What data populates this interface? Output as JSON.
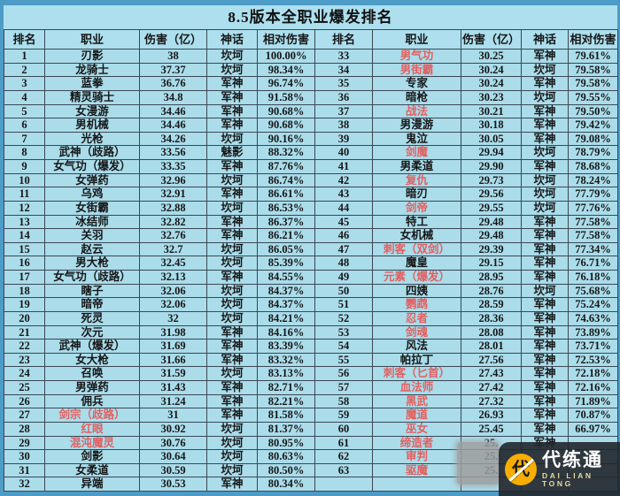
{
  "title": "8.5版本全职业爆发排名",
  "columns": [
    "排名",
    "职业",
    "伤害（亿）",
    "神话",
    "相对伤害"
  ],
  "left_rows": [
    {
      "rank": "1",
      "name": "刃影",
      "red": false,
      "dmg": "38",
      "myth": "坎坷",
      "rel": "100.00%"
    },
    {
      "rank": "2",
      "name": "龙骑士",
      "red": false,
      "dmg": "37.37",
      "myth": "坎坷",
      "rel": "98.34%"
    },
    {
      "rank": "3",
      "name": "蓝拳",
      "red": false,
      "dmg": "36.76",
      "myth": "军神",
      "rel": "96.74%"
    },
    {
      "rank": "4",
      "name": "精灵骑士",
      "red": false,
      "dmg": "34.8",
      "myth": "军神",
      "rel": "91.58%"
    },
    {
      "rank": "5",
      "name": "女漫游",
      "red": false,
      "dmg": "34.46",
      "myth": "军神",
      "rel": "90.68%"
    },
    {
      "rank": "6",
      "name": "男机械",
      "red": false,
      "dmg": "34.46",
      "myth": "军神",
      "rel": "90.68%"
    },
    {
      "rank": "7",
      "name": "光枪",
      "red": false,
      "dmg": "34.26",
      "myth": "坎坷",
      "rel": "90.16%"
    },
    {
      "rank": "8",
      "name": "武神（歧路）",
      "red": false,
      "dmg": "33.56",
      "myth": "魅影",
      "rel": "88.32%"
    },
    {
      "rank": "9",
      "name": "女气功（爆发）",
      "red": false,
      "dmg": "33.35",
      "myth": "军神",
      "rel": "87.76%"
    },
    {
      "rank": "10",
      "name": "女弹药",
      "red": false,
      "dmg": "32.96",
      "myth": "坎坷",
      "rel": "86.74%"
    },
    {
      "rank": "11",
      "name": "乌鸡",
      "red": false,
      "dmg": "32.91",
      "myth": "军神",
      "rel": "86.61%"
    },
    {
      "rank": "12",
      "name": "女街霸",
      "red": false,
      "dmg": "32.88",
      "myth": "坎坷",
      "rel": "86.53%"
    },
    {
      "rank": "13",
      "name": "冰结师",
      "red": false,
      "dmg": "32.82",
      "myth": "军神",
      "rel": "86.37%"
    },
    {
      "rank": "14",
      "name": "关羽",
      "red": false,
      "dmg": "32.76",
      "myth": "军神",
      "rel": "86.21%"
    },
    {
      "rank": "15",
      "name": "赵云",
      "red": false,
      "dmg": "32.7",
      "myth": "坎坷",
      "rel": "86.05%"
    },
    {
      "rank": "16",
      "name": "男大枪",
      "red": false,
      "dmg": "32.45",
      "myth": "坎坷",
      "rel": "85.39%"
    },
    {
      "rank": "17",
      "name": "女气功（歧路）",
      "red": false,
      "dmg": "32.13",
      "myth": "军神",
      "rel": "84.55%"
    },
    {
      "rank": "18",
      "name": "瞎子",
      "red": false,
      "dmg": "32.06",
      "myth": "坎坷",
      "rel": "84.37%"
    },
    {
      "rank": "19",
      "name": "暗帝",
      "red": false,
      "dmg": "32.06",
      "myth": "坎坷",
      "rel": "84.37%"
    },
    {
      "rank": "20",
      "name": "死灵",
      "red": false,
      "dmg": "32",
      "myth": "坎坷",
      "rel": "84.21%"
    },
    {
      "rank": "21",
      "name": "次元",
      "red": false,
      "dmg": "31.98",
      "myth": "军神",
      "rel": "84.16%"
    },
    {
      "rank": "22",
      "name": "武神（爆发）",
      "red": false,
      "dmg": "31.69",
      "myth": "军神",
      "rel": "83.39%"
    },
    {
      "rank": "23",
      "name": "女大枪",
      "red": false,
      "dmg": "31.66",
      "myth": "军神",
      "rel": "83.32%"
    },
    {
      "rank": "24",
      "name": "召唤",
      "red": false,
      "dmg": "31.59",
      "myth": "坎坷",
      "rel": "83.13%"
    },
    {
      "rank": "25",
      "name": "男弹药",
      "red": false,
      "dmg": "31.43",
      "myth": "军神",
      "rel": "82.71%"
    },
    {
      "rank": "26",
      "name": "佣兵",
      "red": false,
      "dmg": "31.24",
      "myth": "军神",
      "rel": "82.21%"
    },
    {
      "rank": "27",
      "name": "剑宗（歧路）",
      "red": true,
      "dmg": "31",
      "myth": "军神",
      "rel": "81.58%"
    },
    {
      "rank": "28",
      "name": "红眼",
      "red": true,
      "dmg": "30.92",
      "myth": "坎坷",
      "rel": "81.37%"
    },
    {
      "rank": "29",
      "name": "混沌魔灵",
      "red": true,
      "dmg": "30.76",
      "myth": "坎坷",
      "rel": "80.95%"
    },
    {
      "rank": "30",
      "name": "剑影",
      "red": false,
      "dmg": "30.64",
      "myth": "坎坷",
      "rel": "80.63%"
    },
    {
      "rank": "31",
      "name": "女柔道",
      "red": false,
      "dmg": "30.59",
      "myth": "坎坷",
      "rel": "80.50%"
    },
    {
      "rank": "32",
      "name": "异端",
      "red": false,
      "dmg": "30.53",
      "myth": "军神",
      "rel": "80.34%"
    }
  ],
  "right_rows": [
    {
      "rank": "33",
      "name": "男气功",
      "red": true,
      "dmg": "30.25",
      "myth": "军神",
      "rel": "79.61%"
    },
    {
      "rank": "34",
      "name": "男街霸",
      "red": true,
      "dmg": "30.24",
      "myth": "坎坷",
      "rel": "79.58%"
    },
    {
      "rank": "35",
      "name": "专家",
      "red": false,
      "dmg": "30.24",
      "myth": "军神",
      "rel": "79.58%"
    },
    {
      "rank": "36",
      "name": "暗枪",
      "red": false,
      "dmg": "30.23",
      "myth": "坎坷",
      "rel": "79.55%"
    },
    {
      "rank": "37",
      "name": "战法",
      "red": true,
      "dmg": "30.21",
      "myth": "军神",
      "rel": "79.50%"
    },
    {
      "rank": "38",
      "name": "男漫游",
      "red": false,
      "dmg": "30.18",
      "myth": "军神",
      "rel": "79.42%"
    },
    {
      "rank": "39",
      "name": "鬼泣",
      "red": false,
      "dmg": "30.05",
      "myth": "军神",
      "rel": "79.08%"
    },
    {
      "rank": "40",
      "name": "剑魔",
      "red": true,
      "dmg": "29.94",
      "myth": "坎坷",
      "rel": "78.79%"
    },
    {
      "rank": "41",
      "name": "男柔道",
      "red": false,
      "dmg": "29.90",
      "myth": "军神",
      "rel": "78.68%"
    },
    {
      "rank": "42",
      "name": "复仇",
      "red": true,
      "dmg": "29.73",
      "myth": "坎坷",
      "rel": "78.24%"
    },
    {
      "rank": "43",
      "name": "暗刃",
      "red": false,
      "dmg": "29.56",
      "myth": "坎坷",
      "rel": "77.79%"
    },
    {
      "rank": "44",
      "name": "剑帝",
      "red": true,
      "dmg": "29.55",
      "myth": "坎坷",
      "rel": "77.76%"
    },
    {
      "rank": "45",
      "name": "特工",
      "red": false,
      "dmg": "29.48",
      "myth": "军神",
      "rel": "77.58%"
    },
    {
      "rank": "46",
      "name": "女机械",
      "red": false,
      "dmg": "29.48",
      "myth": "军神",
      "rel": "77.58%"
    },
    {
      "rank": "47",
      "name": "刺客（双剑）",
      "red": true,
      "dmg": "29.39",
      "myth": "军神",
      "rel": "77.34%"
    },
    {
      "rank": "48",
      "name": "魔皇",
      "red": false,
      "dmg": "29.15",
      "myth": "军神",
      "rel": "76.71%"
    },
    {
      "rank": "49",
      "name": "元素（爆发）",
      "red": true,
      "dmg": "28.95",
      "myth": "军神",
      "rel": "76.18%"
    },
    {
      "rank": "50",
      "name": "四姨",
      "red": false,
      "dmg": "28.76",
      "myth": "坎坷",
      "rel": "75.68%"
    },
    {
      "rank": "51",
      "name": "鹦鹉",
      "red": true,
      "dmg": "28.59",
      "myth": "军神",
      "rel": "75.24%"
    },
    {
      "rank": "52",
      "name": "忍者",
      "red": true,
      "dmg": "28.36",
      "myth": "军神",
      "rel": "74.63%"
    },
    {
      "rank": "53",
      "name": "剑魂",
      "red": true,
      "dmg": "28.08",
      "myth": "军神",
      "rel": "73.89%"
    },
    {
      "rank": "54",
      "name": "风法",
      "red": false,
      "dmg": "28.01",
      "myth": "军神",
      "rel": "73.71%"
    },
    {
      "rank": "55",
      "name": "帕拉丁",
      "red": false,
      "dmg": "27.56",
      "myth": "军神",
      "rel": "72.53%"
    },
    {
      "rank": "56",
      "name": "刺客（匕首）",
      "red": true,
      "dmg": "27.43",
      "myth": "军神",
      "rel": "72.18%"
    },
    {
      "rank": "57",
      "name": "血法师",
      "red": true,
      "dmg": "27.42",
      "myth": "军神",
      "rel": "72.16%"
    },
    {
      "rank": "58",
      "name": "黑武",
      "red": true,
      "dmg": "27.32",
      "myth": "军神",
      "rel": "71.89%"
    },
    {
      "rank": "59",
      "name": "魔道",
      "red": true,
      "dmg": "26.93",
      "myth": "军神",
      "rel": "70.87%"
    },
    {
      "rank": "60",
      "name": "巫女",
      "red": true,
      "dmg": "25.45",
      "myth": "军神",
      "rel": "66.97%"
    },
    {
      "rank": "61",
      "name": "缔造者",
      "red": true,
      "dmg": "25.",
      "myth": "军神",
      "rel": ""
    },
    {
      "rank": "62",
      "name": "审判",
      "red": true,
      "dmg": "25.",
      "myth": "",
      "rel": ""
    },
    {
      "rank": "63",
      "name": "驱魔",
      "red": true,
      "dmg": "25.",
      "myth": "",
      "rel": ""
    },
    {
      "rank": "",
      "name": "",
      "red": false,
      "dmg": "",
      "myth": "",
      "rel": ""
    }
  ],
  "watermark": {
    "icon_char": "代",
    "brand": "代练通",
    "sub": "DAI LIAN TONG"
  },
  "colors": {
    "frame_blue": "#4d9bc7",
    "cell_bg": "#aadcea",
    "grid_line": "#3b4754",
    "red_name": "#e25f5f",
    "watermark_yellow": "#f7ae00"
  }
}
